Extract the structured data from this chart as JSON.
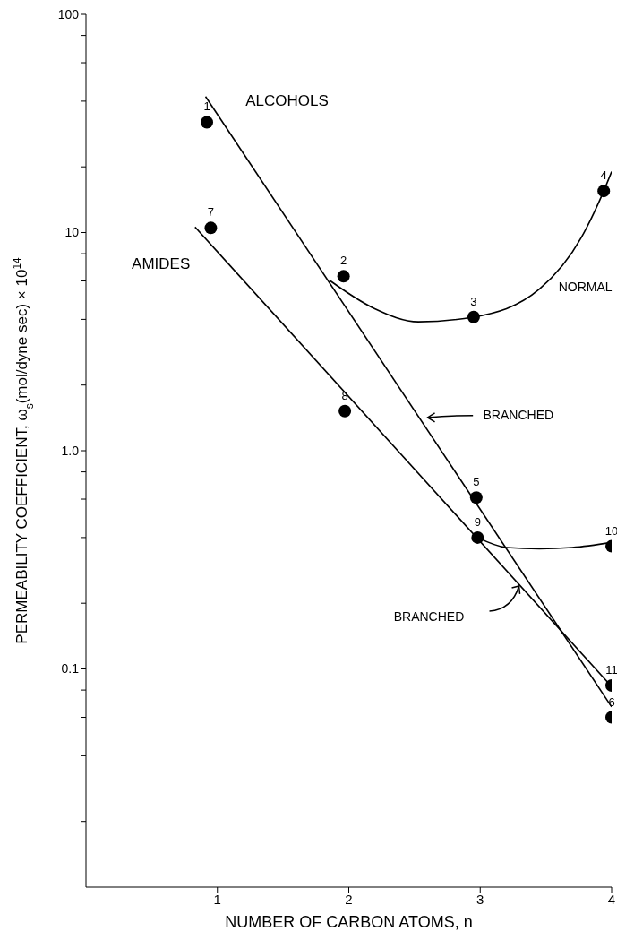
{
  "chart_data": {
    "type": "scatter",
    "xlabel": "NUMBER OF CARBON ATOMS, n",
    "ylabel": "PERMEABILITY  COEFFICIENT, ω$_{s}$(mol/dyne sec) × 10$^{14}$",
    "log": "y",
    "xlim": [
      0,
      4
    ],
    "xticks": [
      1,
      2,
      3,
      4
    ],
    "ylim": [
      0.01,
      100
    ],
    "yticks": [
      {
        "value": 0.02,
        "label": null
      },
      {
        "value": 0.04,
        "label": null
      },
      {
        "value": 0.06,
        "label": null
      },
      {
        "value": 0.08,
        "label": null
      },
      0.1,
      {
        "value": 0.2,
        "label": null
      },
      {
        "value": 0.4,
        "label": null
      },
      {
        "value": 0.6,
        "label": null
      },
      {
        "value": 0.8,
        "label": null
      },
      {
        "value": 1,
        "label": "1.0"
      },
      {
        "value": 2,
        "label": null
      },
      {
        "value": 4,
        "label": null
      },
      {
        "value": 6,
        "label": null
      },
      {
        "value": 8,
        "label": null
      },
      10,
      {
        "value": 20,
        "label": null
      },
      {
        "value": 40,
        "label": null
      },
      {
        "value": 60,
        "label": null
      },
      {
        "value": 80,
        "label": null
      },
      100
    ],
    "series": [
      {
        "type": "line",
        "color": "#000000",
        "marker": "none",
        "x": [
          0.91,
          4.0
        ],
        "values": [
          42,
          0.067
        ]
      },
      {
        "type": "line",
        "color": "#000000",
        "marker": "none",
        "x": [
          1.86,
          2.19,
          2.53,
          2.95,
          3.45,
          3.77,
          3.94,
          4.0
        ],
        "values": [
          6.0,
          4.5,
          3.9,
          4.1,
          5.5,
          9.5,
          15.5,
          19.0
        ]
      },
      {
        "type": "line",
        "color": "#000000",
        "marker": "none",
        "x": [
          0.83,
          4.0
        ],
        "values": [
          10.6,
          0.083
        ]
      },
      {
        "type": "line",
        "color": "#000000",
        "marker": "none",
        "x": [
          2.98,
          3.2,
          3.45,
          3.7,
          4.0
        ],
        "values": [
          0.4,
          0.36,
          0.355,
          0.36,
          0.38
        ]
      },
      {
        "color": "#000000",
        "marker": "circle",
        "x": [
          0.92,
          1.96,
          2.95,
          3.94,
          2.97,
          4.0
        ],
        "values": [
          32,
          6.3,
          4.1,
          15.5,
          0.61,
          0.06
        ]
      },
      {
        "color": "#000000",
        "marker": "circle",
        "x": [
          0.95,
          1.97,
          2.98,
          4.0,
          4.0
        ],
        "values": [
          10.5,
          1.52,
          0.4,
          0.365,
          0.084
        ]
      }
    ],
    "annotations": [
      {
        "text": "1",
        "x": 0.92,
        "y": 32
      },
      {
        "text": "2",
        "x": 1.96,
        "y": 6.3
      },
      {
        "text": "3",
        "x": 2.95,
        "y": 4.1
      },
      {
        "text": "4",
        "x": 3.94,
        "y": 15.5
      },
      {
        "text": "5",
        "x": 2.97,
        "y": 0.61
      },
      {
        "text": "6",
        "x": 4.0,
        "y": 0.06
      },
      {
        "text": "7",
        "x": 0.95,
        "y": 10.5
      },
      {
        "text": "8",
        "x": 1.97,
        "y": 1.52
      },
      {
        "text": "9",
        "x": 2.98,
        "y": 0.4
      },
      {
        "text": "10",
        "x": 4.0,
        "y": 0.365
      },
      {
        "text": "11",
        "x": 4.0,
        "y": 0.084
      },
      "ALCOHOLS",
      "AMIDES",
      "NORMAL",
      "BRANCHED",
      "BRANCHED"
    ]
  }
}
